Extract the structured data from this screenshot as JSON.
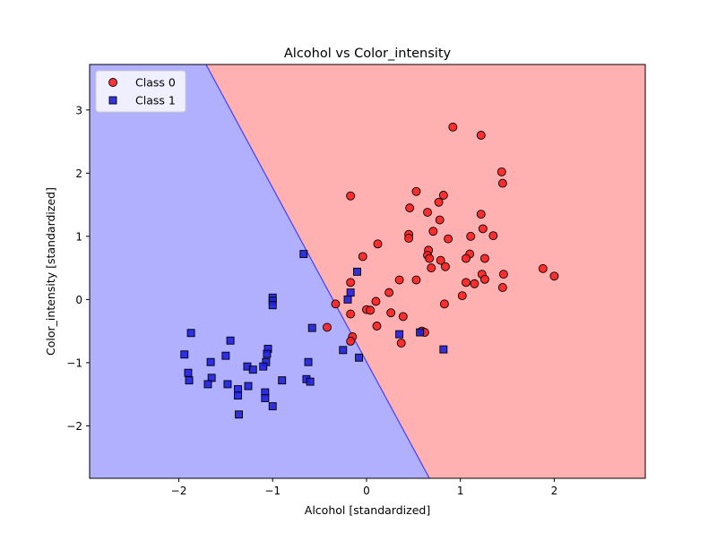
{
  "chart_data": {
    "type": "scatter",
    "title": "Alcohol vs Color_intensity",
    "xlabel": "Alcohol [standardized]",
    "ylabel": "Color_intensity [standardized]",
    "xlim": [
      -2.95,
      2.97
    ],
    "ylim": [
      -2.83,
      3.72
    ],
    "xticks": [
      -2,
      -1,
      0,
      1,
      2
    ],
    "yticks": [
      -2,
      -1,
      0,
      1,
      2,
      3
    ],
    "xtick_labels": [
      "−2",
      "−1",
      "0",
      "1",
      "2"
    ],
    "ytick_labels": [
      "−2",
      "−1",
      "0",
      "1",
      "2",
      "3"
    ],
    "grid": false,
    "legend_position": "upper-left",
    "decision_boundary": {
      "line": [
        [
          -1.71,
          3.72
        ],
        [
          0.67,
          -2.83
        ]
      ],
      "region_colors": {
        "Class 0": "#ffb0b0",
        "Class 1": "#b0b0ff"
      }
    },
    "series": [
      {
        "name": "Class 0",
        "marker": "circle",
        "color": "#ff2020",
        "points": [
          [
            0.92,
            2.73
          ],
          [
            1.22,
            2.6
          ],
          [
            1.44,
            2.02
          ],
          [
            1.45,
            1.84
          ],
          [
            -0.17,
            1.64
          ],
          [
            0.53,
            1.71
          ],
          [
            0.82,
            1.65
          ],
          [
            0.46,
            1.45
          ],
          [
            0.77,
            1.54
          ],
          [
            0.65,
            1.38
          ],
          [
            0.78,
            1.26
          ],
          [
            1.22,
            1.35
          ],
          [
            1.24,
            1.12
          ],
          [
            1.35,
            1.01
          ],
          [
            0.71,
            1.08
          ],
          [
            0.45,
            1.03
          ],
          [
            0.45,
            0.97
          ],
          [
            1.11,
            1.0
          ],
          [
            0.87,
            0.96
          ],
          [
            0.12,
            0.88
          ],
          [
            0.66,
            0.78
          ],
          [
            0.65,
            0.7
          ],
          [
            1.1,
            0.72
          ],
          [
            0.67,
            0.65
          ],
          [
            1.26,
            0.65
          ],
          [
            1.06,
            0.65
          ],
          [
            0.79,
            0.62
          ],
          [
            -0.04,
            0.68
          ],
          [
            0.69,
            0.5
          ],
          [
            0.84,
            0.52
          ],
          [
            1.46,
            0.4
          ],
          [
            1.23,
            0.4
          ],
          [
            1.88,
            0.49
          ],
          [
            2.0,
            0.37
          ],
          [
            1.26,
            0.32
          ],
          [
            1.06,
            0.27
          ],
          [
            1.15,
            0.25
          ],
          [
            0.35,
            0.31
          ],
          [
            0.53,
            0.31
          ],
          [
            -0.17,
            0.27
          ],
          [
            1.45,
            0.19
          ],
          [
            1.02,
            0.06
          ],
          [
            0.24,
            0.11
          ],
          [
            0.1,
            -0.03
          ],
          [
            0.83,
            -0.07
          ],
          [
            -0.33,
            -0.07
          ],
          [
            0.0,
            -0.16
          ],
          [
            0.04,
            -0.17
          ],
          [
            0.26,
            -0.21
          ],
          [
            -0.17,
            -0.23
          ],
          [
            0.39,
            -0.27
          ],
          [
            -0.42,
            -0.44
          ],
          [
            0.11,
            -0.42
          ],
          [
            0.59,
            -0.5
          ],
          [
            0.62,
            -0.52
          ],
          [
            -0.15,
            -0.59
          ],
          [
            -0.17,
            -0.66
          ],
          [
            0.37,
            -0.69
          ]
        ]
      },
      {
        "name": "Class 1",
        "marker": "square",
        "color": "#2020e0",
        "points": [
          [
            -0.67,
            0.72
          ],
          [
            -0.1,
            0.44
          ],
          [
            -1.0,
            0.03
          ],
          [
            -1.0,
            -0.02
          ],
          [
            -1.0,
            -0.09
          ],
          [
            -0.58,
            -0.45
          ],
          [
            -0.2,
            0.0
          ],
          [
            -0.17,
            0.11
          ],
          [
            -1.87,
            -0.53
          ],
          [
            -1.45,
            -0.65
          ],
          [
            -1.05,
            -0.78
          ],
          [
            -1.06,
            -0.86
          ],
          [
            -1.94,
            -0.87
          ],
          [
            -1.5,
            -0.89
          ],
          [
            -1.66,
            -0.99
          ],
          [
            -1.07,
            -0.99
          ],
          [
            -1.27,
            -1.06
          ],
          [
            -1.21,
            -1.11
          ],
          [
            -1.1,
            -1.06
          ],
          [
            -0.62,
            -0.99
          ],
          [
            -1.9,
            -1.16
          ],
          [
            -1.65,
            -1.24
          ],
          [
            -1.89,
            -1.28
          ],
          [
            -1.48,
            -1.34
          ],
          [
            -1.69,
            -1.34
          ],
          [
            -1.26,
            -1.37
          ],
          [
            -0.9,
            -1.28
          ],
          [
            -0.64,
            -1.26
          ],
          [
            -0.6,
            -1.3
          ],
          [
            -1.37,
            -1.42
          ],
          [
            -1.37,
            -1.52
          ],
          [
            -1.08,
            -1.47
          ],
          [
            -1.08,
            -1.56
          ],
          [
            -1.0,
            -1.69
          ],
          [
            -1.36,
            -1.82
          ],
          [
            -0.25,
            -0.8
          ],
          [
            -0.08,
            -0.92
          ],
          [
            0.35,
            -0.55
          ],
          [
            0.57,
            -0.52
          ],
          [
            0.82,
            -0.79
          ]
        ]
      }
    ]
  }
}
